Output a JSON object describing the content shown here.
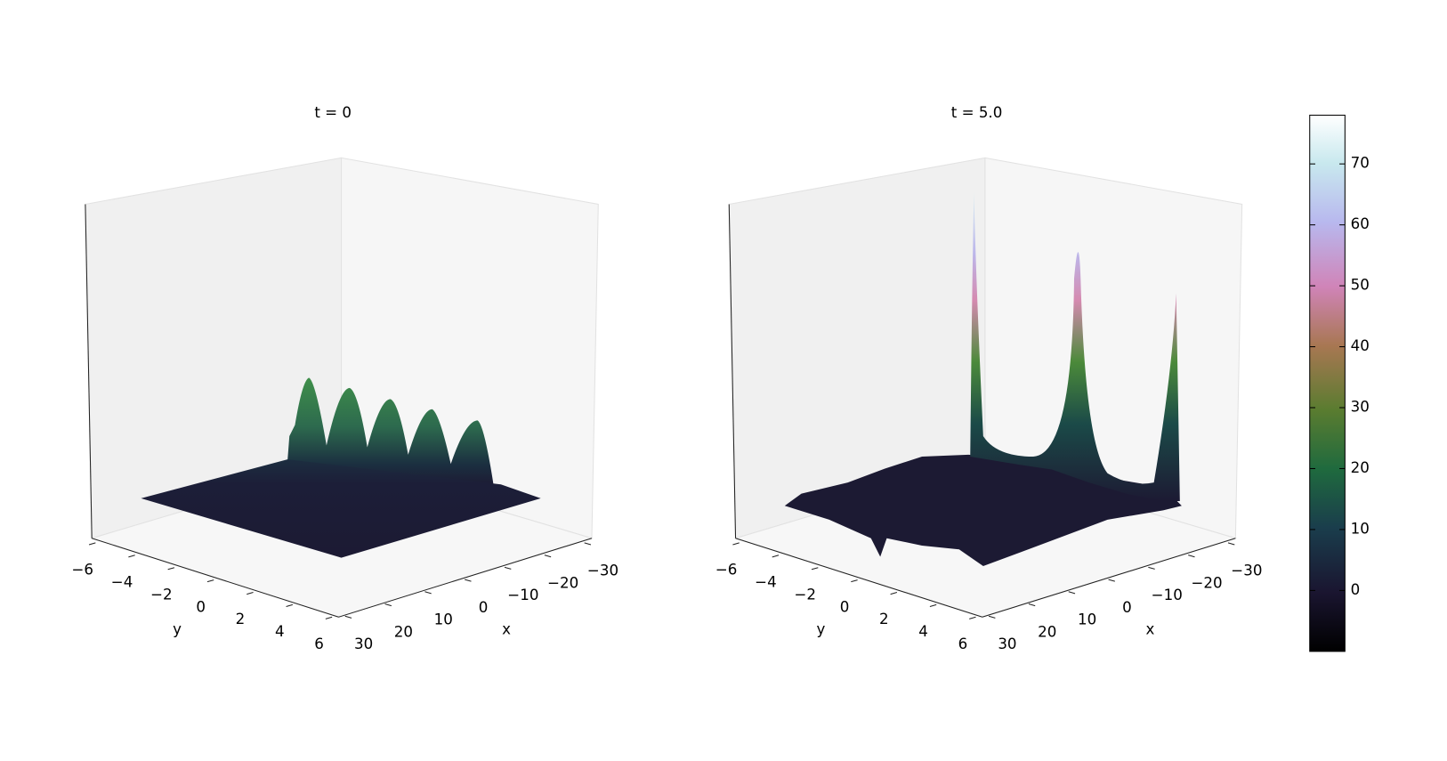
{
  "chart_data": [
    {
      "type": "surface",
      "title": "t = 0",
      "x_label": "x",
      "y_label": "y",
      "xlim": [
        30,
        -30
      ],
      "ylim": [
        -6,
        6
      ],
      "xticks": [
        30,
        20,
        10,
        0,
        {
          "value": -10,
          "label": "−10"
        },
        {
          "value": -20,
          "label": "−20"
        },
        {
          "value": -30,
          "label": "−30"
        }
      ],
      "yticks": [
        {
          "value": -6,
          "label": "−6"
        },
        {
          "value": -4,
          "label": "−4"
        },
        {
          "value": -2,
          "label": "−2"
        },
        0,
        2,
        4,
        6
      ]
    },
    {
      "type": "surface",
      "title": "t = 5.0",
      "x_label": "x",
      "y_label": "y",
      "xlim": [
        30,
        -30
      ],
      "ylim": [
        -6,
        6
      ],
      "xticks": [
        30,
        20,
        10,
        0,
        {
          "value": -10,
          "label": "−10"
        },
        {
          "value": -20,
          "label": "−20"
        },
        {
          "value": -30,
          "label": "−30"
        }
      ],
      "yticks": [
        {
          "value": -6,
          "label": "−6"
        },
        {
          "value": -4,
          "label": "−4"
        },
        {
          "value": -2,
          "label": "−2"
        },
        0,
        2,
        4,
        6
      ],
      "colorbar": {
        "clim": [
          -10,
          78
        ],
        "ticks": [
          0,
          10,
          20,
          30,
          40,
          50,
          60,
          70
        ]
      }
    }
  ]
}
